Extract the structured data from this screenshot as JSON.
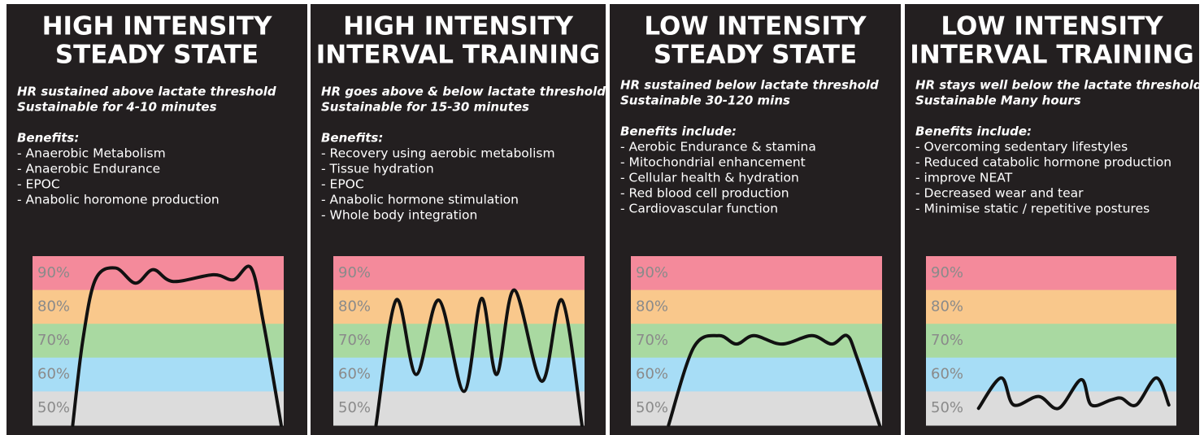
{
  "zones": [
    "90%",
    "80%",
    "70%",
    "60%",
    "50%"
  ],
  "panels": [
    {
      "title": [
        "HIGH INTENSITY",
        "STEADY STATE"
      ],
      "description": [
        "HR sustained above lactate threshold",
        "Sustainable for 4-10 minutes"
      ],
      "benefits_heading": "Benefits:",
      "benefits": [
        "- Anaerobic Metabolism",
        "- Anaerobic Endurance",
        "- EPOC",
        "- Anabolic horomone production"
      ]
    },
    {
      "title": [
        "HIGH INTENSITY",
        "INTERVAL TRAINING"
      ],
      "description": [
        "HR goes above & below lactate threshold",
        "Sustainable for 15-30 minutes"
      ],
      "benefits_heading": "Benefits:",
      "benefits": [
        "- Recovery using aerobic metabolism",
        "- Tissue hydration",
        "- EPOC",
        "- Anabolic hormone stimulation",
        "- Whole body integration"
      ]
    },
    {
      "title": [
        "LOW INTENSITY",
        "STEADY STATE"
      ],
      "description": [
        "HR sustained below lactate threshold",
        "Sustainable 30-120 mins"
      ],
      "benefits_heading": "Benefits include:",
      "benefits": [
        "- Aerobic Endurance & stamina",
        "- Mitochondrial enhancement",
        "- Cellular health & hydration",
        "- Red blood cell production",
        "- Cardiovascular function"
      ]
    },
    {
      "title": [
        "LOW INTENSITY",
        "INTERVAL TRAINING"
      ],
      "description": [
        "HR stays  well below the lactate threshold",
        "Sustainable Many hours"
      ],
      "benefits_heading": "Benefits include:",
      "benefits": [
        "- Overcoming sedentary lifestyles",
        "- Reduced catabolic hormone production",
        "- improve NEAT",
        "- Decreased wear and tear",
        "- Minimise static / repetitive postures"
      ]
    }
  ]
}
